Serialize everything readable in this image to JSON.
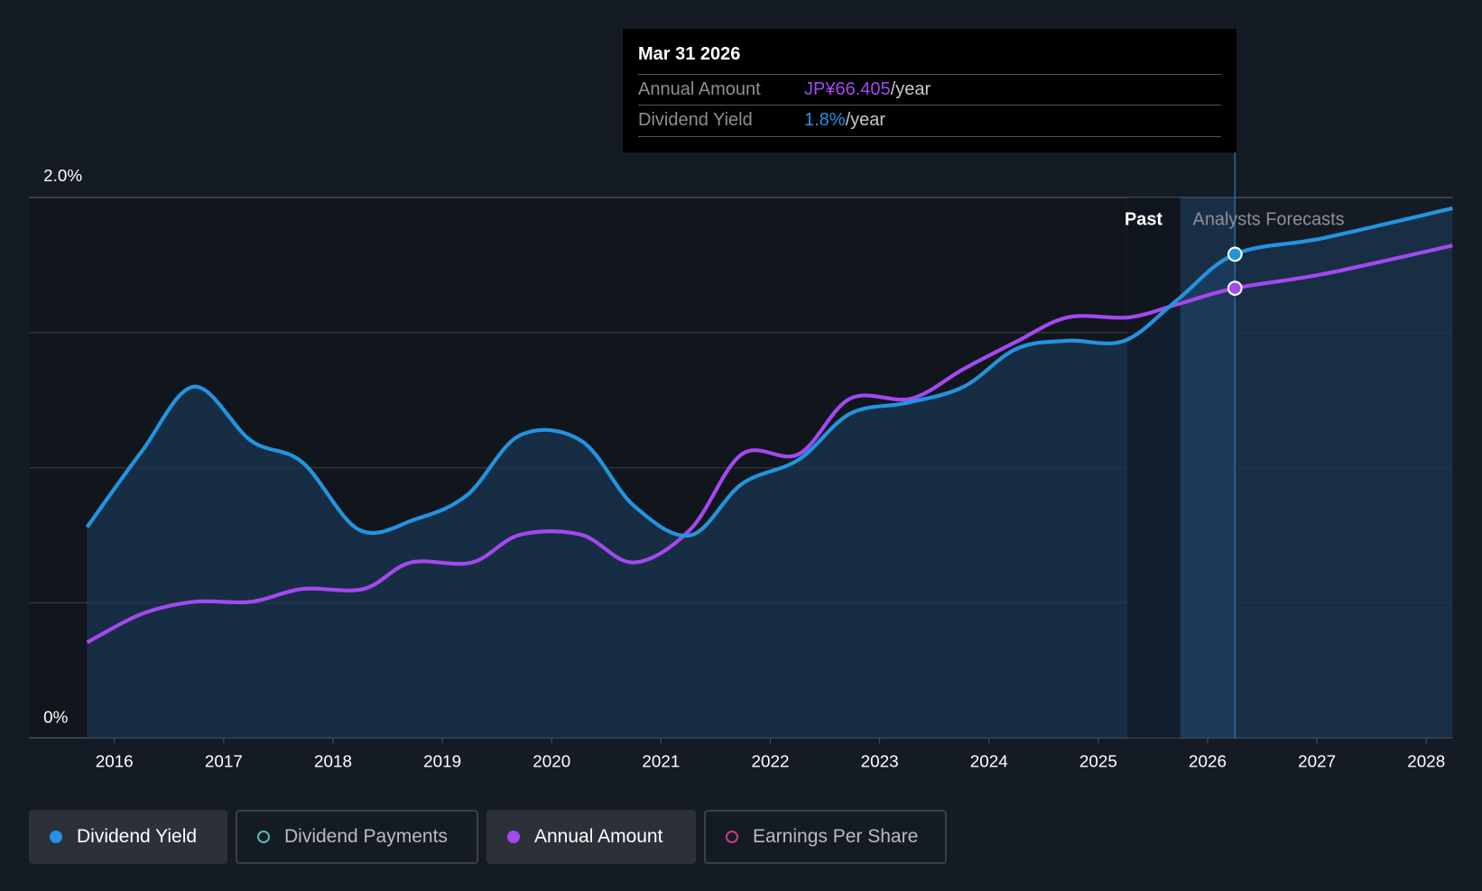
{
  "colors": {
    "yield": "#2394e0",
    "annual": "#a349ef",
    "payments": "#4fc1b0",
    "eps": "#c2407c"
  },
  "tooltip": {
    "date": "Mar 31 2026",
    "annual_label": "Annual Amount",
    "annual_value": "JP¥66.405",
    "annual_unit": "/year",
    "yield_label": "Dividend Yield",
    "yield_value": "1.8%",
    "yield_unit": "/year"
  },
  "legend": [
    {
      "label": "Dividend Yield",
      "active": true
    },
    {
      "label": "Dividend Payments",
      "active": false
    },
    {
      "label": "Annual Amount",
      "active": true
    },
    {
      "label": "Earnings Per Share",
      "active": false
    }
  ],
  "chart_data": {
    "type": "line",
    "y_tick_labels": [
      "2.0%",
      "0%"
    ],
    "ylim": [
      0,
      2.0
    ],
    "xlim": [
      2015.25,
      2028.25
    ],
    "x_ticks": [
      2016,
      2017,
      2018,
      2019,
      2020,
      2021,
      2022,
      2023,
      2024,
      2025,
      2026,
      2027,
      2028
    ],
    "x_tick_labels": [
      "2016",
      "2017",
      "2018",
      "2019",
      "2020",
      "2021",
      "2022",
      "2023",
      "2024",
      "2025",
      "2026",
      "2027",
      "2028"
    ],
    "region_labels": {
      "past": "Past",
      "forecast": "Analysts Forecasts"
    },
    "past_boundary": 2025.75,
    "highlight_x": 2026.25,
    "series": [
      {
        "name": "Dividend Yield",
        "unit": "%",
        "x": [
          2015.75,
          2016.25,
          2016.73,
          2017.25,
          2017.72,
          2018.24,
          2018.76,
          2019.23,
          2019.71,
          2020.27,
          2020.75,
          2021.27,
          2021.74,
          2022.26,
          2022.73,
          2023.25,
          2023.77,
          2024.25,
          2024.72,
          2025.24,
          2025.72,
          2026.25,
          2027.06,
          2028.24
        ],
        "values": [
          0.78,
          1.06,
          1.3,
          1.1,
          1.02,
          0.77,
          0.81,
          0.9,
          1.12,
          1.1,
          0.86,
          0.75,
          0.94,
          1.03,
          1.2,
          1.24,
          1.3,
          1.44,
          1.47,
          1.47,
          1.62,
          1.79,
          1.85,
          1.96
        ]
      },
      {
        "name": "Annual Amount",
        "unit": "JPY",
        "scale_per_pct": 39.9,
        "x": [
          2015.75,
          2016.25,
          2016.73,
          2017.25,
          2017.72,
          2018.28,
          2018.71,
          2019.27,
          2019.71,
          2020.27,
          2020.75,
          2021.27,
          2021.74,
          2022.26,
          2022.73,
          2023.29,
          2023.77,
          2024.25,
          2024.72,
          2025.28,
          2025.72,
          2026.25,
          2027.06,
          2028.24
        ],
        "values": [
          14.1,
          18.3,
          20.1,
          20.1,
          22.0,
          22.0,
          25.9,
          25.9,
          30.0,
          30.0,
          25.9,
          30.8,
          41.9,
          41.9,
          50.1,
          50.1,
          54.5,
          58.5,
          62.1,
          62.1,
          64.0,
          66.4,
          68.5,
          72.7
        ]
      }
    ]
  }
}
